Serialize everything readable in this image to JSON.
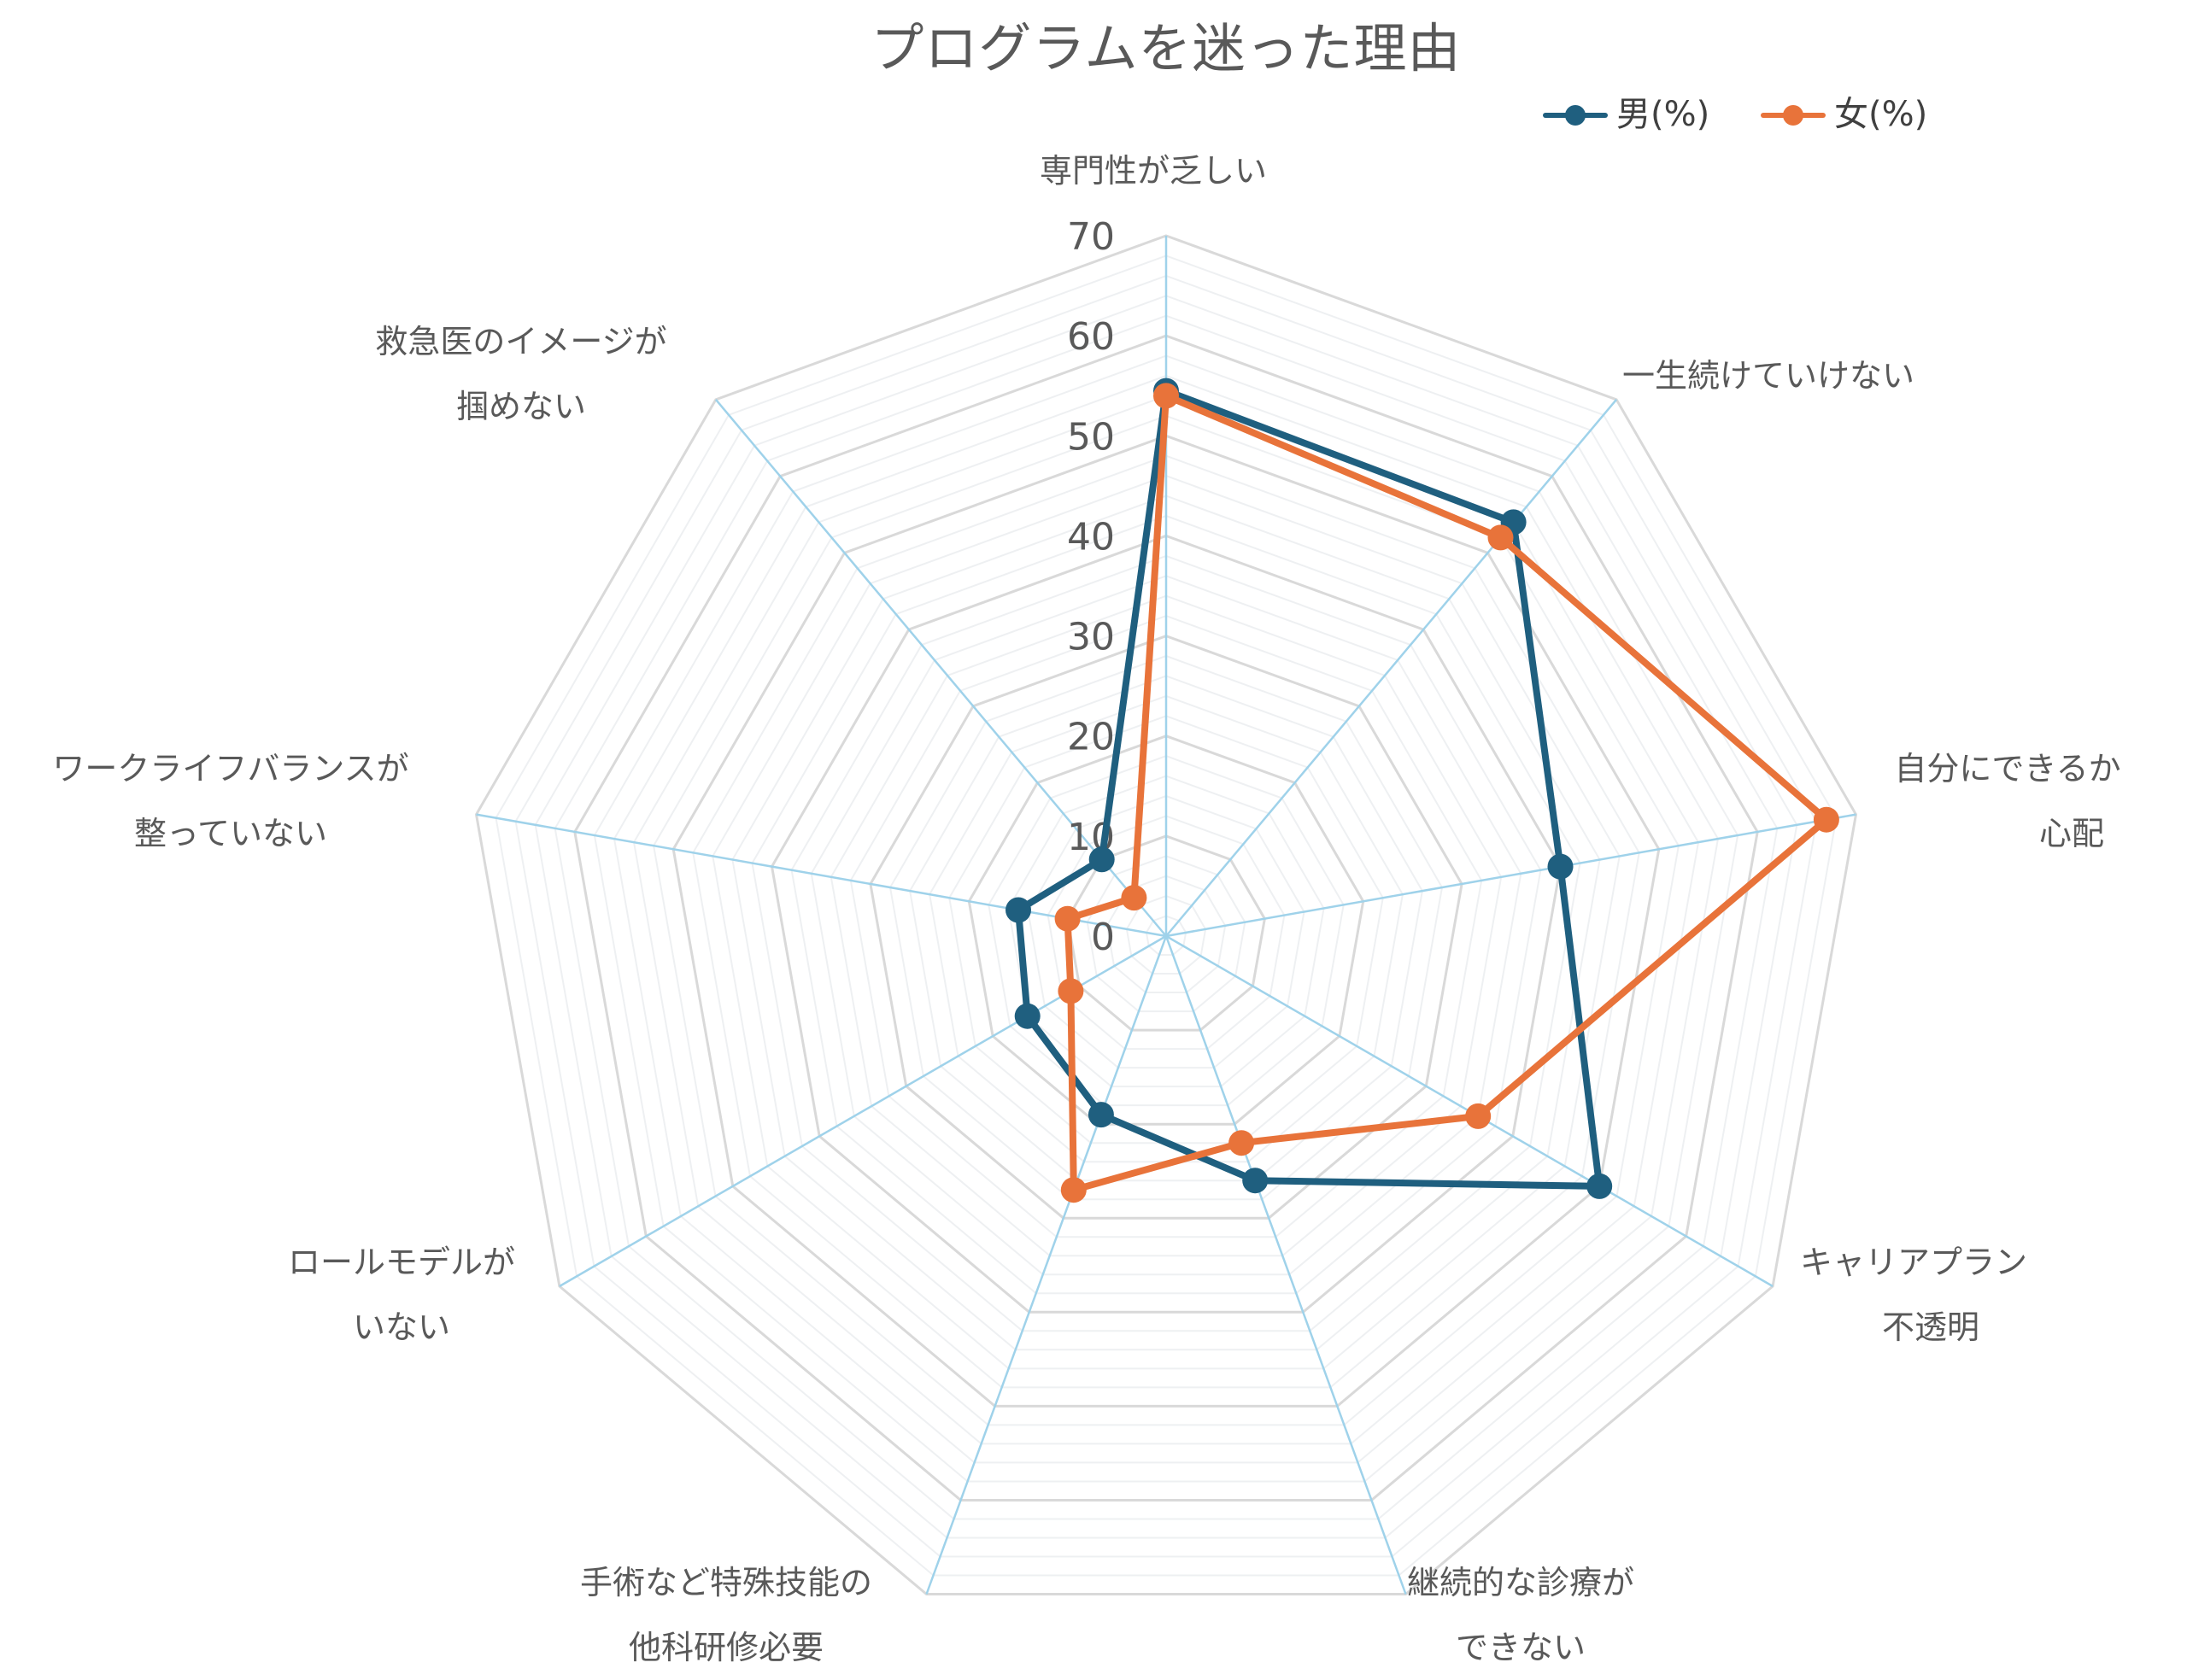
{
  "chart_data": {
    "type": "radar",
    "title": "プログラムを迷った理由",
    "categories": [
      "専門性が乏しい",
      "一生続けていけない",
      "自分にできるか心配",
      "キャリアプラン不透明",
      "継続的な診療ができない",
      "手術など特殊技能の他科研修必要",
      "ロールモデルがいない",
      "ワークライフバランスが整っていない",
      "救急医のイメージが掴めない"
    ],
    "category_labels": [
      [
        "専門性が乏しい"
      ],
      [
        "一生続けていけない"
      ],
      [
        "自分にできるか",
        "心配"
      ],
      [
        "キャリアプラン",
        "不透明"
      ],
      [
        "継続的な診療が",
        "できない"
      ],
      [
        "手術など特殊技能の",
        "他科研修必要"
      ],
      [
        "ロールモデルが",
        "いない"
      ],
      [
        "ワークライフバランスが",
        "整っていない"
      ],
      [
        "救急医のイメージが",
        "掴めない"
      ]
    ],
    "axis": {
      "min": 0,
      "max": 70,
      "major_step": 10,
      "minor_step": 2,
      "tick_labels": [
        "0",
        "10",
        "20",
        "30",
        "40",
        "50",
        "60",
        "70"
      ]
    },
    "grid": true,
    "legend_position": "top-right",
    "series": [
      {
        "name": "男(%)",
        "color": "#1f5f7f",
        "values": [
          54.5,
          54,
          40,
          50,
          26,
          19,
          16,
          15,
          10
        ]
      },
      {
        "name": "女(%)",
        "color": "#e8733a",
        "values": [
          54,
          52,
          67,
          36,
          22,
          27,
          11,
          10,
          5
        ]
      }
    ],
    "colors": {
      "major_grid": "#d9d9d9",
      "minor_grid": "#eef0f2",
      "spoke": "#9fd2ea",
      "text": "#595959"
    }
  }
}
